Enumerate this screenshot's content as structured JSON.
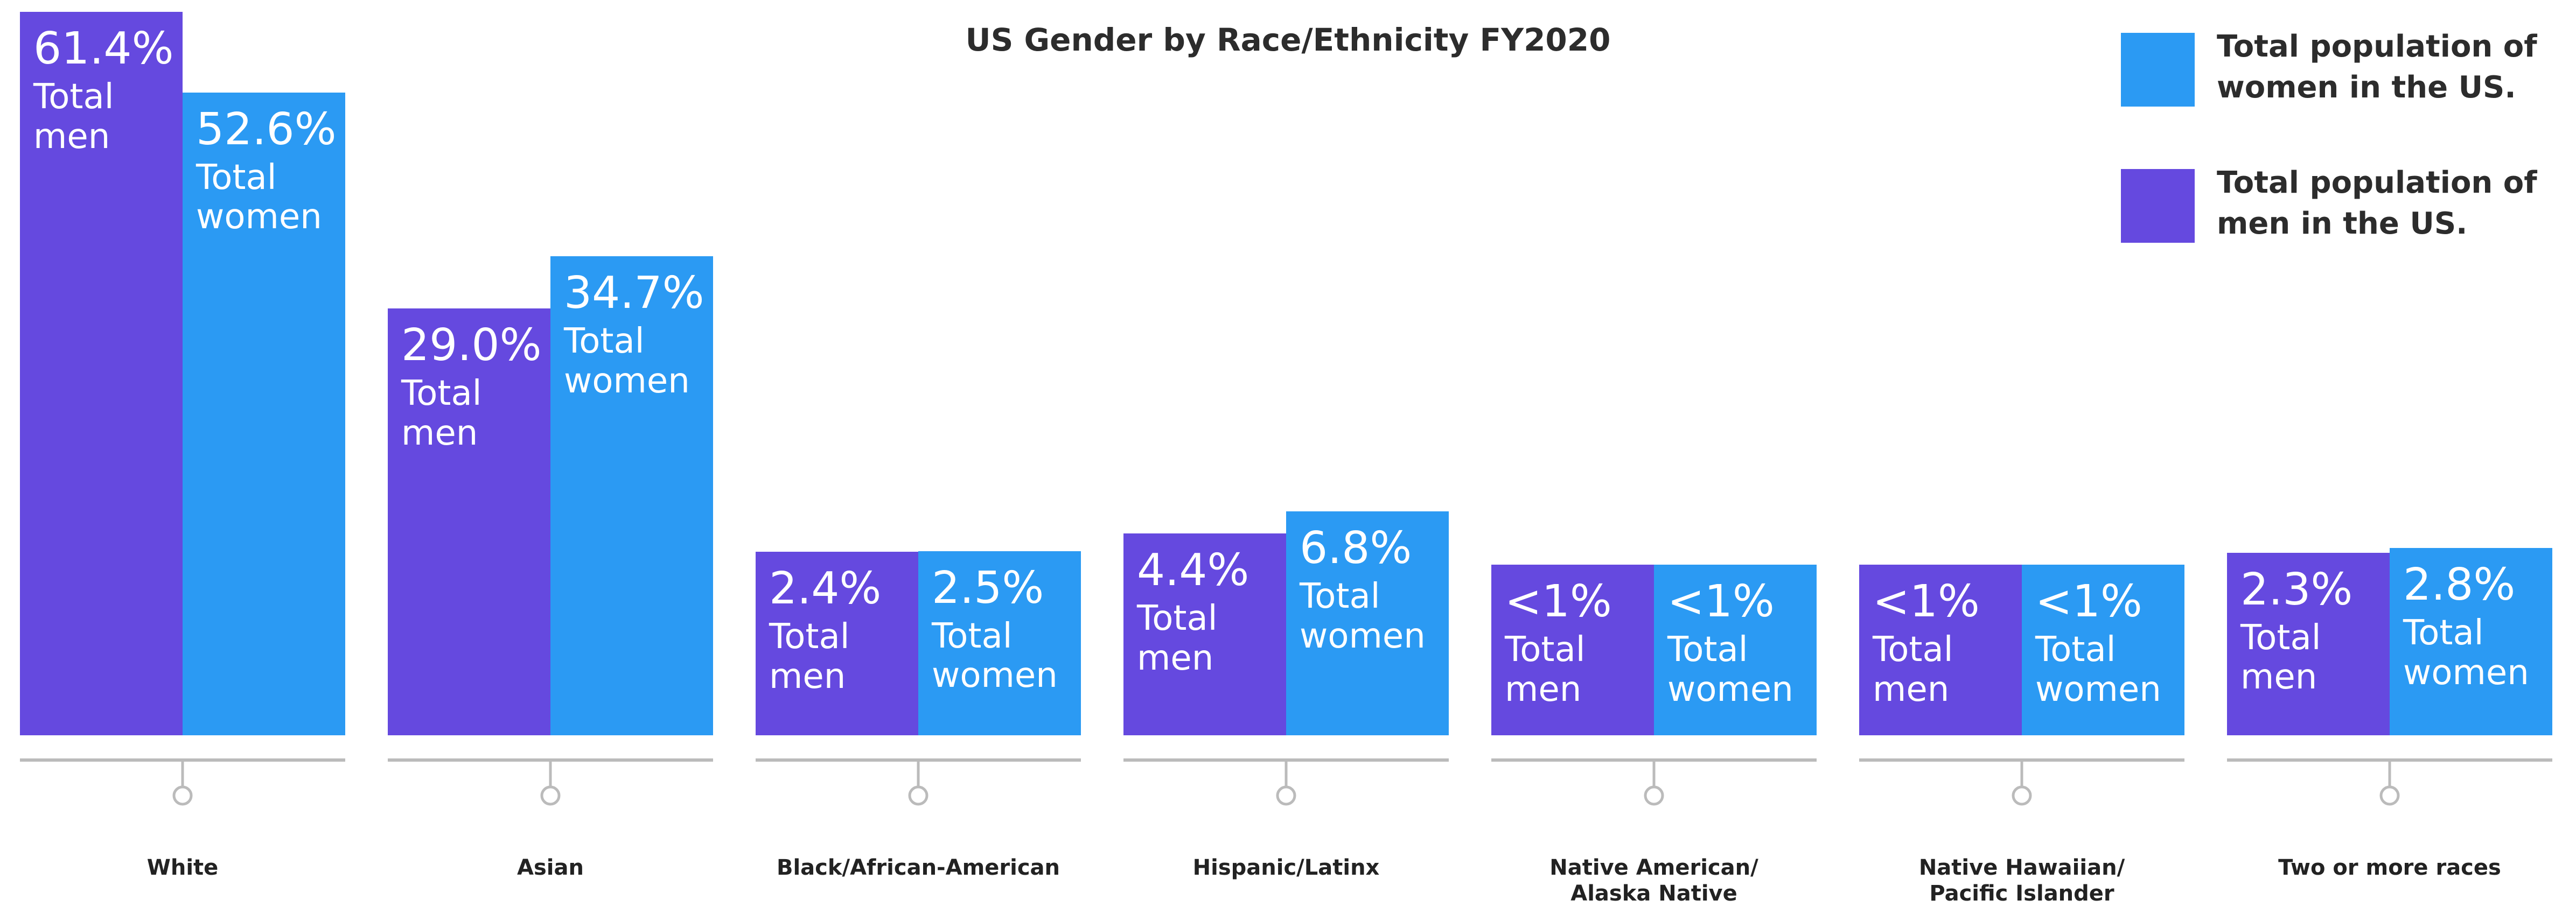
{
  "chart_data": {
    "type": "bar",
    "title": "US Gender by Race/Ethnicity FY2020",
    "categories": [
      "White",
      "Asian",
      "Black/African-American",
      "Hispanic/Latinx",
      "Native American/\nAlaska Native",
      "Native Hawaiian/\nPacific Islander",
      "Two or more races"
    ],
    "series": [
      {
        "name": "Total population of\nwomen in the US.",
        "color": "#2b9af3",
        "bar_text": "Total\nwomen",
        "values": [
          52.6,
          34.7,
          2.5,
          6.8,
          1,
          1,
          2.8
        ],
        "value_labels": [
          "52.6%",
          "34.7%",
          "2.5%",
          "6.8%",
          "<1%",
          "<1%",
          "2.8%"
        ]
      },
      {
        "name": "Total population of\nmen in the US.",
        "color": "#6549df",
        "bar_text": "Total\nmen",
        "values": [
          61.4,
          29.0,
          2.4,
          4.4,
          1,
          1,
          2.3
        ],
        "value_labels": [
          "61.4%",
          "29.0%",
          "2.4%",
          "4.4%",
          "<1%",
          "<1%",
          "2.3%"
        ]
      }
    ]
  }
}
